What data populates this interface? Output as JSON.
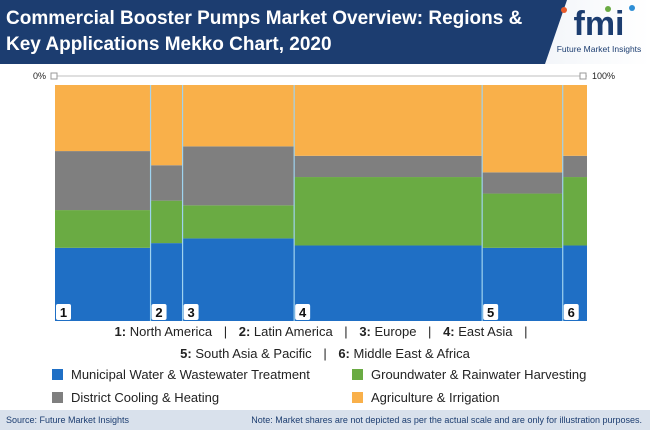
{
  "header": {
    "title_line1": "Commercial Booster Pumps Market Overview: Regions &",
    "title_line2": "Key Applications Mekko Chart, 2020",
    "logo_text": "fmi",
    "logo_subtitle": "Future Market Insights"
  },
  "chart_data": {
    "type": "mekko",
    "title": "Commercial Booster Pumps Market Overview: Regions & Key Applications Mekko Chart, 2020",
    "x_axis_start_label": "0%",
    "x_axis_end_label": "100%",
    "categories": [
      "1",
      "2",
      "3",
      "4",
      "5",
      "6"
    ],
    "widths": [
      18.5,
      6.2,
      21.6,
      36.4,
      15.6,
      4.7
    ],
    "series": [
      {
        "name": "Municipal Water & Wastewater Treatment",
        "color": "#1f6fc5",
        "values": [
          31,
          33,
          35,
          32,
          31,
          32
        ]
      },
      {
        "name": "Groundwater & Rainwater Harvesting",
        "color": "#6aab43",
        "values": [
          16,
          18,
          14,
          29,
          23,
          29
        ]
      },
      {
        "name": "District Cooling & Heating",
        "color": "#7f7f7f",
        "values": [
          25,
          15,
          25,
          9,
          9,
          9
        ]
      },
      {
        "name": "Agriculture & Irrigation",
        "color": "#f9b04a",
        "values": [
          28,
          34,
          26,
          30,
          37,
          30
        ]
      }
    ]
  },
  "legend": {
    "regions": [
      {
        "num": "1:",
        "name": "North America"
      },
      {
        "num": "2:",
        "name": "Latin America"
      },
      {
        "num": "3:",
        "name": "Europe"
      },
      {
        "num": "4:",
        "name": "East Asia"
      },
      {
        "num": "5:",
        "name": "South Asia & Pacific"
      },
      {
        "num": "6:",
        "name": "Middle East & Africa"
      }
    ],
    "separator": "|"
  },
  "footer": {
    "source": "Source: Future Market Insights",
    "note": "Note: Market shares are not depicted as per the actual scale and are only for illustration purposes."
  }
}
